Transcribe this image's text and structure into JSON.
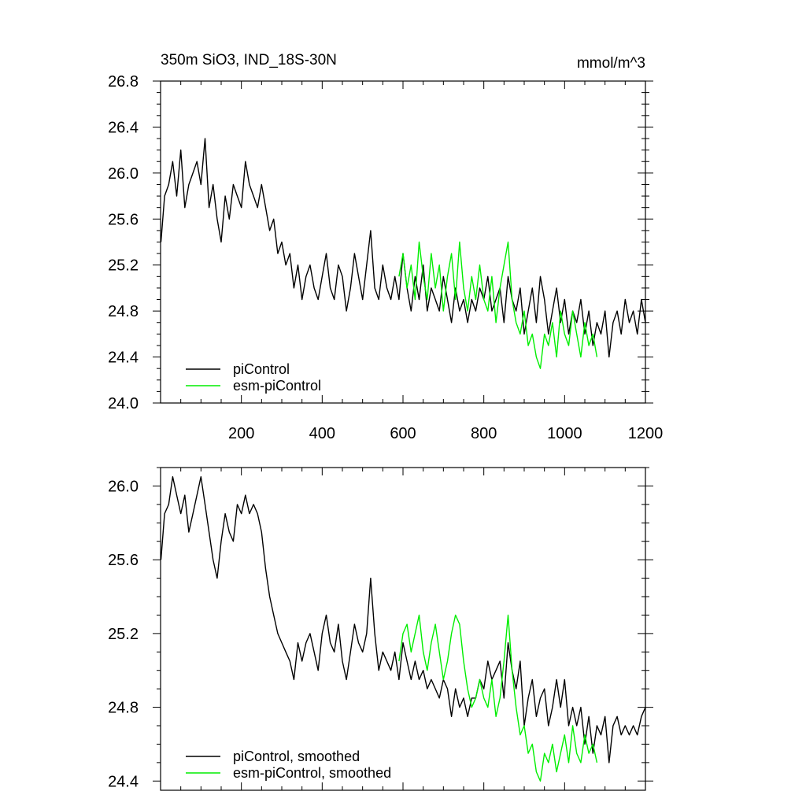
{
  "chart_data": [
    {
      "type": "line",
      "title": "350m SiO3, IND_18S-30N",
      "units": "mmol/m^3",
      "xlim": [
        0,
        1200
      ],
      "ylim": [
        24.0,
        26.8
      ],
      "xticks": [
        200,
        400,
        600,
        800,
        1000,
        1200
      ],
      "xtick_labels": [
        "200",
        "400",
        "600",
        "800",
        "1000",
        "1200"
      ],
      "yticks": [
        24.0,
        24.4,
        24.8,
        25.2,
        25.6,
        26.0,
        26.4,
        26.8
      ],
      "ytick_labels": [
        "24.0",
        "24.4",
        "24.8",
        "25.2",
        "25.6",
        "26.0",
        "26.4",
        "26.8"
      ],
      "legend_position": "bottom-left",
      "series": [
        {
          "name": "piControl",
          "color": "#000000",
          "x": [
            1,
            10,
            20,
            30,
            40,
            50,
            60,
            70,
            80,
            90,
            100,
            110,
            120,
            130,
            140,
            150,
            160,
            170,
            180,
            190,
            200,
            210,
            220,
            230,
            240,
            250,
            260,
            270,
            280,
            290,
            300,
            310,
            320,
            330,
            340,
            350,
            360,
            370,
            380,
            390,
            400,
            410,
            420,
            430,
            440,
            450,
            460,
            470,
            480,
            490,
            500,
            510,
            520,
            530,
            540,
            550,
            560,
            570,
            580,
            590,
            600,
            610,
            620,
            630,
            640,
            650,
            660,
            670,
            680,
            690,
            700,
            710,
            720,
            730,
            740,
            750,
            760,
            770,
            780,
            790,
            800,
            810,
            820,
            830,
            840,
            850,
            860,
            870,
            880,
            890,
            900,
            910,
            920,
            930,
            940,
            950,
            960,
            970,
            980,
            990,
            1000,
            1010,
            1020,
            1030,
            1040,
            1050,
            1060,
            1070,
            1080,
            1090,
            1100,
            1110,
            1120,
            1130,
            1140,
            1150,
            1160,
            1170,
            1180,
            1190,
            1200
          ],
          "y": [
            25.4,
            25.8,
            25.9,
            26.1,
            25.8,
            26.2,
            25.7,
            25.9,
            26.0,
            26.1,
            25.9,
            26.3,
            25.7,
            25.9,
            25.6,
            25.4,
            25.8,
            25.6,
            25.9,
            25.8,
            25.7,
            26.1,
            25.9,
            25.8,
            25.7,
            25.9,
            25.7,
            25.5,
            25.6,
            25.3,
            25.4,
            25.2,
            25.3,
            25.0,
            25.2,
            24.9,
            25.1,
            25.2,
            25.0,
            24.9,
            25.1,
            25.3,
            25.0,
            24.9,
            25.2,
            25.1,
            24.8,
            25.0,
            25.3,
            25.1,
            24.9,
            25.2,
            25.5,
            25.0,
            24.9,
            25.2,
            25.0,
            24.9,
            25.1,
            24.9,
            25.3,
            25.0,
            24.8,
            25.1,
            24.9,
            25.2,
            24.8,
            25.0,
            24.9,
            24.8,
            25.1,
            24.9,
            24.7,
            25.0,
            24.8,
            24.9,
            24.7,
            24.9,
            24.8,
            25.0,
            24.9,
            25.1,
            24.8,
            24.9,
            25.0,
            24.7,
            25.1,
            24.9,
            24.8,
            25.0,
            24.6,
            24.8,
            25.0,
            24.7,
            25.1,
            24.9,
            24.6,
            24.8,
            25.0,
            24.7,
            24.9,
            24.6,
            24.8,
            24.7,
            24.9,
            24.6,
            24.8,
            24.5,
            24.7,
            24.6,
            24.8,
            24.4,
            24.7,
            24.8,
            24.6,
            24.9,
            24.7,
            24.8,
            24.6,
            24.9,
            24.7
          ]
        },
        {
          "name": "esm-piControl",
          "color": "#00ee00",
          "x": [
            590,
            600,
            610,
            620,
            630,
            640,
            650,
            660,
            670,
            680,
            690,
            700,
            710,
            720,
            730,
            740,
            750,
            760,
            770,
            780,
            790,
            800,
            810,
            820,
            830,
            840,
            850,
            860,
            870,
            880,
            890,
            900,
            910,
            920,
            930,
            940,
            950,
            960,
            970,
            980,
            990,
            1000,
            1010,
            1020,
            1030,
            1040,
            1050,
            1060,
            1070,
            1080
          ],
          "y": [
            25.1,
            25.3,
            25.0,
            25.2,
            24.9,
            25.4,
            25.1,
            24.9,
            25.3,
            25.0,
            25.2,
            24.8,
            25.1,
            25.3,
            24.9,
            25.4,
            25.0,
            24.8,
            25.1,
            24.9,
            25.2,
            24.9,
            24.8,
            25.1,
            24.7,
            25.0,
            25.2,
            25.4,
            24.9,
            24.7,
            24.6,
            24.8,
            24.5,
            24.6,
            24.4,
            24.3,
            24.6,
            24.5,
            24.7,
            24.4,
            24.8,
            24.6,
            24.5,
            24.8,
            24.6,
            24.4,
            24.7,
            24.5,
            24.6,
            24.4
          ]
        }
      ]
    },
    {
      "type": "line",
      "xlim": [
        0,
        1200
      ],
      "ylim": [
        24.35,
        26.1
      ],
      "xticks": [
        200,
        400,
        600,
        800,
        1000,
        1200
      ],
      "yticks": [
        24.4,
        24.8,
        25.2,
        25.6,
        26.0
      ],
      "ytick_labels": [
        "24.4",
        "24.8",
        "25.2",
        "25.6",
        "26.0"
      ],
      "legend_position": "bottom-left",
      "series": [
        {
          "name": "piControl, smoothed",
          "color": "#000000",
          "x": [
            1,
            10,
            20,
            30,
            40,
            50,
            60,
            70,
            80,
            90,
            100,
            110,
            120,
            130,
            140,
            150,
            160,
            170,
            180,
            190,
            200,
            210,
            220,
            230,
            240,
            250,
            260,
            270,
            280,
            290,
            300,
            310,
            320,
            330,
            340,
            350,
            360,
            370,
            380,
            390,
            400,
            410,
            420,
            430,
            440,
            450,
            460,
            470,
            480,
            490,
            500,
            510,
            520,
            530,
            540,
            550,
            560,
            570,
            580,
            590,
            600,
            610,
            620,
            630,
            640,
            650,
            660,
            670,
            680,
            690,
            700,
            710,
            720,
            730,
            740,
            750,
            760,
            770,
            780,
            790,
            800,
            810,
            820,
            830,
            840,
            850,
            860,
            870,
            880,
            890,
            900,
            910,
            920,
            930,
            940,
            950,
            960,
            970,
            980,
            990,
            1000,
            1010,
            1020,
            1030,
            1040,
            1050,
            1060,
            1070,
            1080,
            1090,
            1100,
            1110,
            1120,
            1130,
            1140,
            1150,
            1160,
            1170,
            1180,
            1190,
            1200
          ],
          "y": [
            25.6,
            25.85,
            25.9,
            26.05,
            25.95,
            25.85,
            25.95,
            25.75,
            25.85,
            25.95,
            26.05,
            25.9,
            25.75,
            25.6,
            25.5,
            25.7,
            25.85,
            25.75,
            25.7,
            25.9,
            25.85,
            25.95,
            25.85,
            25.9,
            25.85,
            25.75,
            25.55,
            25.4,
            25.3,
            25.2,
            25.15,
            25.1,
            25.05,
            24.95,
            25.15,
            25.05,
            25.15,
            25.2,
            25.1,
            25.0,
            25.2,
            25.3,
            25.15,
            25.1,
            25.25,
            25.05,
            24.95,
            25.1,
            25.25,
            25.15,
            25.1,
            25.2,
            25.5,
            25.2,
            25.0,
            25.1,
            25.05,
            25.0,
            25.1,
            24.95,
            25.15,
            25.05,
            24.95,
            25.05,
            24.95,
            25.0,
            24.9,
            24.95,
            24.9,
            24.85,
            24.95,
            24.9,
            24.75,
            24.9,
            24.8,
            24.85,
            24.75,
            24.85,
            24.85,
            24.95,
            24.9,
            25.05,
            24.95,
            25.0,
            25.05,
            24.85,
            25.15,
            25.0,
            24.9,
            25.05,
            24.7,
            24.85,
            24.95,
            24.75,
            24.85,
            24.9,
            24.7,
            24.8,
            24.95,
            24.8,
            24.95,
            24.7,
            24.8,
            24.7,
            24.8,
            24.6,
            24.75,
            24.55,
            24.7,
            24.65,
            24.75,
            24.5,
            24.7,
            24.75,
            24.65,
            24.7,
            24.65,
            24.7,
            24.65,
            24.75,
            24.8
          ]
        },
        {
          "name": "esm-piControl, smoothed",
          "color": "#00ee00",
          "x": [
            590,
            600,
            610,
            620,
            630,
            640,
            650,
            660,
            670,
            680,
            690,
            700,
            710,
            720,
            730,
            740,
            750,
            760,
            770,
            780,
            790,
            800,
            810,
            820,
            830,
            840,
            850,
            860,
            870,
            880,
            890,
            900,
            910,
            920,
            930,
            940,
            950,
            960,
            970,
            980,
            990,
            1000,
            1010,
            1020,
            1030,
            1040,
            1050,
            1060,
            1070,
            1080
          ],
          "y": [
            25.05,
            25.2,
            25.25,
            25.1,
            25.2,
            25.3,
            25.1,
            25.0,
            25.15,
            25.25,
            25.1,
            24.95,
            25.05,
            25.2,
            25.3,
            25.25,
            25.05,
            24.9,
            24.8,
            24.85,
            24.95,
            24.85,
            24.8,
            24.95,
            24.75,
            24.85,
            25.05,
            25.3,
            25.0,
            24.8,
            24.65,
            24.7,
            24.55,
            24.6,
            24.45,
            24.4,
            24.55,
            24.5,
            24.6,
            24.45,
            24.55,
            24.65,
            24.5,
            24.7,
            24.55,
            24.5,
            24.65,
            24.55,
            24.6,
            24.5
          ]
        }
      ]
    }
  ]
}
